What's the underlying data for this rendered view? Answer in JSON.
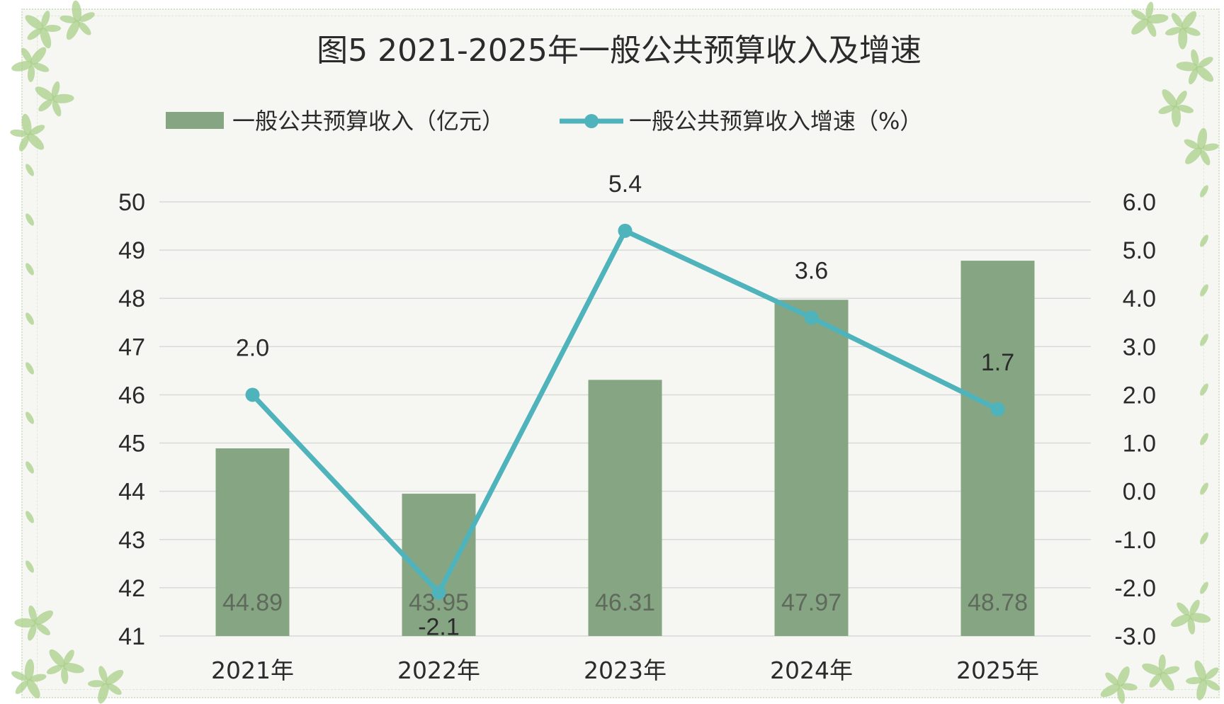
{
  "colors": {
    "bar": "#86a683",
    "line": "#4fb3bc",
    "grid": "#d9d9d9",
    "background": "#f6f7f3",
    "leaf": "#a9cf8a"
  },
  "chart_data": {
    "type": "bar",
    "title": "图5  2021-2025年一般公共预算收入及增速",
    "categories": [
      "2021年",
      "2022年",
      "2023年",
      "2024年",
      "2025年"
    ],
    "series": [
      {
        "name": "一般公共预算收入（亿元）",
        "type": "bar",
        "axis": "left",
        "values": [
          44.89,
          43.95,
          46.31,
          47.97,
          48.78
        ],
        "labels": [
          "44.89",
          "43.95",
          "46.31",
          "47.97",
          "48.78"
        ]
      },
      {
        "name": "一般公共预算收入增速（%）",
        "type": "line",
        "axis": "right",
        "values": [
          2.0,
          -2.1,
          5.4,
          3.6,
          1.7
        ],
        "labels": [
          "2.0",
          "-2.1",
          "5.4",
          "3.6",
          "1.7"
        ]
      }
    ],
    "y_left": {
      "ylim": [
        41,
        50
      ],
      "ticks": [
        "41",
        "42",
        "43",
        "44",
        "45",
        "46",
        "47",
        "48",
        "49",
        "50"
      ]
    },
    "y_right": {
      "ylim": [
        -3,
        6
      ],
      "ticks": [
        "-3.0",
        "-2.0",
        "-1.0",
        "0.0",
        "1.0",
        "2.0",
        "3.0",
        "4.0",
        "5.0",
        "6.0"
      ]
    },
    "grid": true,
    "legend_position": "top"
  }
}
